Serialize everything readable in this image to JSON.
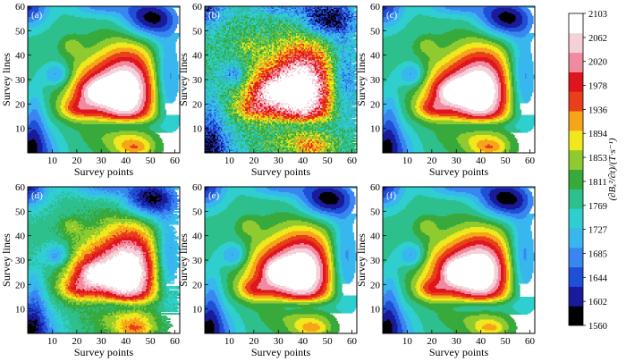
{
  "chart_data": {
    "type": "heatmap",
    "xlabel": "Survey points",
    "ylabel": "Survey lines",
    "xticks": [
      10,
      20,
      30,
      40,
      50,
      60
    ],
    "yticks": [
      10,
      20,
      30,
      40,
      50,
      60
    ],
    "xlim": [
      0,
      62
    ],
    "ylim": [
      0,
      60
    ],
    "panels": [
      {
        "label": "(a)",
        "noise": 0.0,
        "peak": [
          41,
          25,
          13.0
        ],
        "blob": [
          29,
          25,
          3.6
        ]
      },
      {
        "label": "(b)",
        "noise": 7.0,
        "peak": [
          41,
          26,
          13.5
        ],
        "blob": [
          29,
          25,
          4.6
        ]
      },
      {
        "label": "(c)",
        "noise": 0.0,
        "peak": [
          41,
          25,
          13.0
        ],
        "blob": [
          29,
          25,
          3.6
        ]
      },
      {
        "label": "(d)",
        "noise": 2.0,
        "peak": [
          42,
          25,
          13.5
        ],
        "blob": [
          28,
          24,
          4.0
        ]
      },
      {
        "label": "(e)",
        "noise": 0.0,
        "peak": [
          41,
          25,
          12.0
        ],
        "blob": [
          30,
          25,
          2.0
        ]
      },
      {
        "label": "(f)",
        "noise": 0.0,
        "peak": [
          41,
          25,
          11.5
        ],
        "blob": [
          30,
          25,
          1.8
        ]
      }
    ],
    "colorbar": {
      "title": "(∂Bₓ²/∂t)/(T·s⁻¹)",
      "ticks": [
        1560,
        1602,
        1644,
        1685,
        1727,
        1769,
        1811,
        1853,
        1894,
        1936,
        1978,
        2020,
        2062,
        2103
      ],
      "colors": [
        "#000000",
        "#1a1a9a",
        "#1f4fd6",
        "#3a86f0",
        "#38b7ef",
        "#2fcfcf",
        "#2dbf8c",
        "#38a93b",
        "#8fca2e",
        "#f0e81c",
        "#f6a41a",
        "#e8401a",
        "#e0141c",
        "#f08aa0",
        "#f6d0d8",
        "#ffffff"
      ]
    }
  }
}
